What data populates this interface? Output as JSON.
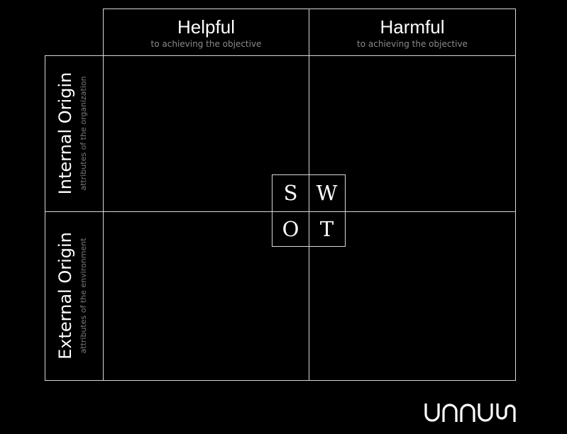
{
  "columns": [
    {
      "title": "Helpful",
      "subtitle": "to achieving the objective"
    },
    {
      "title": "Harmful",
      "subtitle": "to achieving the objective"
    }
  ],
  "rows": [
    {
      "title": "Internal Origin",
      "subtitle": "attributes of the organization"
    },
    {
      "title": "External Origin",
      "subtitle": "attributes of the environment"
    }
  ],
  "swot": {
    "strengths": "S",
    "weaknesses": "W",
    "opportunities": "O",
    "threats": "T"
  },
  "logo": {
    "text": "unnus",
    "icon": "unnus-logo-icon"
  },
  "colors": {
    "background": "#000000",
    "lines": "#d8d8d8",
    "title_text": "#ffffff",
    "subtitle_text": "#8a8a8a"
  }
}
